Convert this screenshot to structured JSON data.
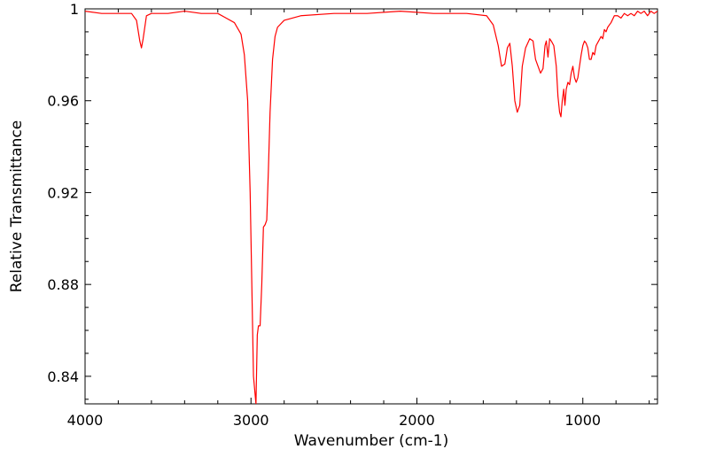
{
  "chart_data": {
    "type": "line",
    "title": "",
    "xlabel": "Wavenumber (cm-1)",
    "ylabel": "Relative Transmittance",
    "xlim": [
      4000,
      550
    ],
    "ylim": [
      0.828,
      1.0
    ],
    "x_reversed": true,
    "grid": false,
    "legend": "none",
    "x_ticks": [
      {
        "value": 4000,
        "label": "4000"
      },
      {
        "value": 3000,
        "label": "3000"
      },
      {
        "value": 2000,
        "label": "2000"
      },
      {
        "value": 1000,
        "label": "1000"
      }
    ],
    "y_ticks": [
      {
        "value": 1.0,
        "label": "1"
      },
      {
        "value": 0.96,
        "label": "0.96"
      },
      {
        "value": 0.92,
        "label": "0.92"
      },
      {
        "value": 0.88,
        "label": "0.88"
      },
      {
        "value": 0.84,
        "label": "0.84"
      }
    ],
    "series": [
      {
        "color": "#ff0000",
        "points": [
          [
            4000,
            0.999
          ],
          [
            3900,
            0.998
          ],
          [
            3800,
            0.998
          ],
          [
            3720,
            0.998
          ],
          [
            3690,
            0.995
          ],
          [
            3670,
            0.986
          ],
          [
            3660,
            0.983
          ],
          [
            3650,
            0.987
          ],
          [
            3630,
            0.997
          ],
          [
            3600,
            0.998
          ],
          [
            3500,
            0.998
          ],
          [
            3400,
            0.999
          ],
          [
            3300,
            0.998
          ],
          [
            3200,
            0.998
          ],
          [
            3150,
            0.996
          ],
          [
            3100,
            0.994
          ],
          [
            3060,
            0.989
          ],
          [
            3040,
            0.98
          ],
          [
            3020,
            0.96
          ],
          [
            3005,
            0.92
          ],
          [
            2995,
            0.88
          ],
          [
            2985,
            0.84
          ],
          [
            2970,
            0.828
          ],
          [
            2962,
            0.858
          ],
          [
            2955,
            0.862
          ],
          [
            2945,
            0.862
          ],
          [
            2935,
            0.88
          ],
          [
            2925,
            0.905
          ],
          [
            2915,
            0.906
          ],
          [
            2905,
            0.908
          ],
          [
            2895,
            0.93
          ],
          [
            2885,
            0.955
          ],
          [
            2870,
            0.978
          ],
          [
            2855,
            0.988
          ],
          [
            2840,
            0.992
          ],
          [
            2800,
            0.995
          ],
          [
            2700,
            0.997
          ],
          [
            2500,
            0.998
          ],
          [
            2300,
            0.998
          ],
          [
            2100,
            0.999
          ],
          [
            1900,
            0.998
          ],
          [
            1700,
            0.998
          ],
          [
            1580,
            0.997
          ],
          [
            1540,
            0.993
          ],
          [
            1510,
            0.984
          ],
          [
            1490,
            0.975
          ],
          [
            1470,
            0.976
          ],
          [
            1455,
            0.983
          ],
          [
            1440,
            0.985
          ],
          [
            1425,
            0.975
          ],
          [
            1410,
            0.96
          ],
          [
            1395,
            0.955
          ],
          [
            1380,
            0.958
          ],
          [
            1365,
            0.975
          ],
          [
            1345,
            0.983
          ],
          [
            1320,
            0.987
          ],
          [
            1300,
            0.986
          ],
          [
            1285,
            0.978
          ],
          [
            1270,
            0.975
          ],
          [
            1255,
            0.972
          ],
          [
            1240,
            0.974
          ],
          [
            1228,
            0.984
          ],
          [
            1220,
            0.986
          ],
          [
            1210,
            0.979
          ],
          [
            1200,
            0.987
          ],
          [
            1190,
            0.986
          ],
          [
            1175,
            0.984
          ],
          [
            1160,
            0.975
          ],
          [
            1150,
            0.962
          ],
          [
            1140,
            0.955
          ],
          [
            1132,
            0.953
          ],
          [
            1124,
            0.96
          ],
          [
            1115,
            0.965
          ],
          [
            1108,
            0.958
          ],
          [
            1100,
            0.965
          ],
          [
            1090,
            0.968
          ],
          [
            1080,
            0.967
          ],
          [
            1070,
            0.972
          ],
          [
            1060,
            0.975
          ],
          [
            1050,
            0.97
          ],
          [
            1040,
            0.968
          ],
          [
            1030,
            0.97
          ],
          [
            1020,
            0.975
          ],
          [
            1010,
            0.98
          ],
          [
            1000,
            0.984
          ],
          [
            990,
            0.986
          ],
          [
            980,
            0.985
          ],
          [
            970,
            0.983
          ],
          [
            960,
            0.978
          ],
          [
            950,
            0.978
          ],
          [
            940,
            0.981
          ],
          [
            930,
            0.98
          ],
          [
            920,
            0.984
          ],
          [
            905,
            0.986
          ],
          [
            890,
            0.988
          ],
          [
            880,
            0.987
          ],
          [
            870,
            0.991
          ],
          [
            860,
            0.99
          ],
          [
            850,
            0.992
          ],
          [
            830,
            0.994
          ],
          [
            810,
            0.997
          ],
          [
            790,
            0.997
          ],
          [
            770,
            0.996
          ],
          [
            750,
            0.998
          ],
          [
            730,
            0.997
          ],
          [
            710,
            0.998
          ],
          [
            690,
            0.997
          ],
          [
            670,
            0.999
          ],
          [
            650,
            0.998
          ],
          [
            630,
            0.999
          ],
          [
            610,
            0.997
          ],
          [
            590,
            0.999
          ],
          [
            570,
            0.998
          ],
          [
            550,
            0.999
          ]
        ]
      }
    ]
  }
}
